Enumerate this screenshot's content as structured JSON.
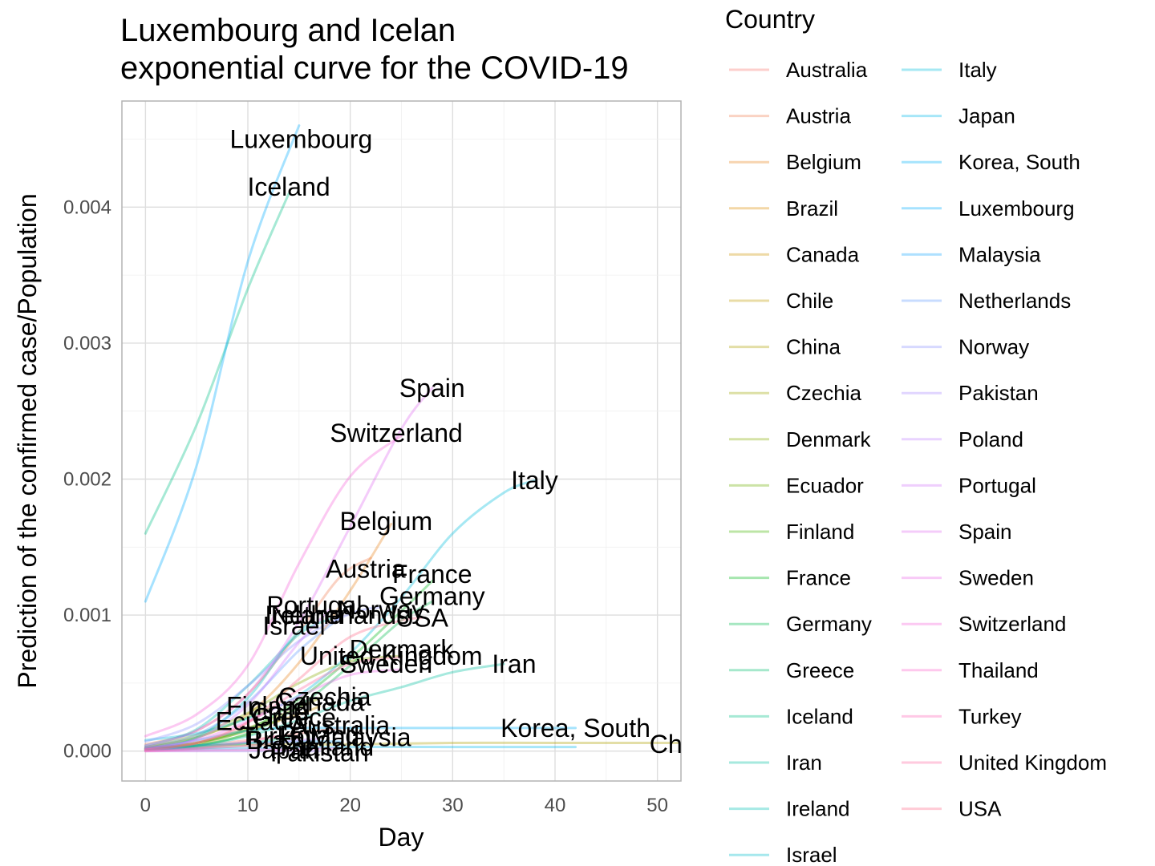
{
  "chart_data": {
    "type": "line",
    "title": "Luxembourg and Icelan\nexponential curve for the COVID-19",
    "xlabel": "Day",
    "ylabel": "Prediction of the confirmed case/Population",
    "xlim": [
      -2.3,
      52.3
    ],
    "ylim": [
      -0.00022,
      0.00478
    ],
    "x_ticks": [
      "0",
      "10",
      "20",
      "30",
      "40",
      "50"
    ],
    "x_tick_values": [
      0,
      10,
      20,
      30,
      40,
      50
    ],
    "y_ticks": [
      "0.000",
      "0.001",
      "0.002",
      "0.003",
      "0.004"
    ],
    "y_tick_values": [
      0,
      0.001,
      0.002,
      0.003,
      0.004
    ],
    "grid": true,
    "legend": {
      "title": "Country",
      "placement": "right",
      "columns": 2
    },
    "series": [
      {
        "name": "Australia",
        "color": "#F8766D",
        "points": [
          [
            0,
            2e-05
          ],
          [
            5,
            4e-05
          ],
          [
            10,
            8e-05
          ],
          [
            15,
            0.00013
          ],
          [
            19,
            0.00017
          ]
        ]
      },
      {
        "name": "Austria",
        "color": "#F07E52",
        "points": [
          [
            0,
            5e-05
          ],
          [
            5,
            0.00015
          ],
          [
            10,
            0.00042
          ],
          [
            15,
            0.00088
          ],
          [
            19,
            0.00128
          ],
          [
            22,
            0.00142
          ]
        ]
      },
      {
        "name": "Belgium",
        "color": "#E7851E",
        "points": [
          [
            0,
            3e-05
          ],
          [
            5,
            0.0001
          ],
          [
            10,
            0.00027
          ],
          [
            15,
            0.00065
          ],
          [
            20,
            0.00118
          ],
          [
            24,
            0.00167
          ]
        ]
      },
      {
        "name": "Brazil",
        "color": "#DC8D00",
        "points": [
          [
            0,
            1e-05
          ],
          [
            5,
            2e-05
          ],
          [
            10,
            4e-05
          ],
          [
            13,
            6e-05
          ]
        ]
      },
      {
        "name": "Canada",
        "color": "#CF9400",
        "points": [
          [
            0,
            2e-05
          ],
          [
            5,
            6e-05
          ],
          [
            10,
            0.00016
          ],
          [
            15,
            0.00027
          ],
          [
            17,
            0.00033
          ]
        ]
      },
      {
        "name": "Chile",
        "color": "#C09B00",
        "points": [
          [
            0,
            1e-05
          ],
          [
            5,
            5e-05
          ],
          [
            10,
            0.00015
          ],
          [
            13,
            0.00022
          ]
        ]
      },
      {
        "name": "China",
        "color": "#B0A100",
        "points": [
          [
            0,
            2e-05
          ],
          [
            10,
            5e-05
          ],
          [
            20,
            5e-05
          ],
          [
            30,
            6e-05
          ],
          [
            40,
            6e-05
          ],
          [
            55,
            6e-05
          ]
        ]
      },
      {
        "name": "Czechia",
        "color": "#9EA700",
        "points": [
          [
            0,
            1e-05
          ],
          [
            5,
            6e-05
          ],
          [
            10,
            0.00017
          ],
          [
            15,
            0.00032
          ],
          [
            17,
            0.00039
          ]
        ]
      },
      {
        "name": "Denmark",
        "color": "#88AC00",
        "points": [
          [
            0,
            3e-05
          ],
          [
            5,
            0.00012
          ],
          [
            10,
            0.00028
          ],
          [
            15,
            0.0005
          ],
          [
            20,
            0.00066
          ],
          [
            25,
            0.0007
          ]
        ]
      },
      {
        "name": "Ecuador",
        "color": "#6DB000",
        "points": [
          [
            0,
            1e-05
          ],
          [
            5,
            4e-05
          ],
          [
            10,
            0.00012
          ],
          [
            11,
            0.00015
          ]
        ]
      },
      {
        "name": "Finland",
        "color": "#43B500",
        "points": [
          [
            0,
            2e-05
          ],
          [
            5,
            0.0001
          ],
          [
            10,
            0.00025
          ],
          [
            12,
            0.00031
          ]
        ]
      },
      {
        "name": "France",
        "color": "#00B81B",
        "points": [
          [
            0,
            2e-05
          ],
          [
            5,
            6e-05
          ],
          [
            10,
            0.00016
          ],
          [
            15,
            0.00038
          ],
          [
            20,
            0.00068
          ],
          [
            25,
            0.00103
          ],
          [
            28,
            0.00125
          ]
        ]
      },
      {
        "name": "Germany",
        "color": "#00BB4E",
        "points": [
          [
            0,
            1e-05
          ],
          [
            5,
            4e-05
          ],
          [
            10,
            0.00013
          ],
          [
            15,
            0.00033
          ],
          [
            20,
            0.00063
          ],
          [
            25,
            0.00096
          ],
          [
            28,
            0.0011
          ]
        ]
      },
      {
        "name": "Greece",
        "color": "#00BD6D",
        "points": [
          [
            0,
            1e-05
          ],
          [
            5,
            3e-05
          ],
          [
            10,
            6e-05
          ],
          [
            14,
            0.0001
          ]
        ]
      },
      {
        "name": "Iceland",
        "color": "#00BF88",
        "points": [
          [
            0,
            0.0016
          ],
          [
            5,
            0.0024
          ],
          [
            10,
            0.0034
          ],
          [
            14,
            0.0041
          ]
        ]
      },
      {
        "name": "Iran",
        "color": "#00C0A0",
        "points": [
          [
            0,
            1e-05
          ],
          [
            5,
            4e-05
          ],
          [
            10,
            0.00011
          ],
          [
            15,
            0.00023
          ],
          [
            20,
            0.00037
          ],
          [
            25,
            0.00047
          ],
          [
            30,
            0.00058
          ],
          [
            35,
            0.00064
          ]
        ]
      },
      {
        "name": "Ireland",
        "color": "#00C0B5",
        "points": [
          [
            0,
            4e-05
          ],
          [
            5,
            0.00016
          ],
          [
            10,
            0.00048
          ],
          [
            15,
            0.00086
          ],
          [
            18,
            0.00097
          ]
        ]
      },
      {
        "name": "Israel",
        "color": "#00BECA",
        "points": [
          [
            0,
            2e-05
          ],
          [
            5,
            0.0001
          ],
          [
            10,
            0.00039
          ],
          [
            14,
            0.0008
          ],
          [
            16,
            0.00094
          ]
        ]
      },
      {
        "name": "Italy",
        "color": "#00BCDC",
        "points": [
          [
            0,
            8e-05
          ],
          [
            5,
            0.00013
          ],
          [
            10,
            0.00024
          ],
          [
            15,
            0.00041
          ],
          [
            20,
            0.00072
          ],
          [
            25,
            0.00113
          ],
          [
            30,
            0.0016
          ],
          [
            35,
            0.0019
          ],
          [
            38,
            0.00199
          ]
        ]
      },
      {
        "name": "Japan",
        "color": "#00B8EC",
        "points": [
          [
            0,
            1e-05
          ],
          [
            10,
            2e-05
          ],
          [
            20,
            3e-05
          ],
          [
            30,
            3e-05
          ],
          [
            42,
            3e-05
          ]
        ]
      },
      {
        "name": "Korea, South",
        "color": "#00B3F9",
        "points": [
          [
            0,
            1e-05
          ],
          [
            5,
            8e-05
          ],
          [
            10,
            0.00015
          ],
          [
            15,
            0.00017
          ],
          [
            25,
            0.00017
          ],
          [
            42,
            0.00017
          ]
        ]
      },
      {
        "name": "Luxembourg",
        "color": "#00ADFF",
        "points": [
          [
            0,
            0.0011
          ],
          [
            5,
            0.0021
          ],
          [
            10,
            0.0036
          ],
          [
            15,
            0.0046
          ]
        ]
      },
      {
        "name": "Malaysia",
        "color": "#18A5FF",
        "points": [
          [
            0,
            1e-05
          ],
          [
            5,
            4e-05
          ],
          [
            10,
            6e-05
          ],
          [
            15,
            7e-05
          ],
          [
            19,
            7e-05
          ]
        ]
      },
      {
        "name": "Netherlands",
        "color": "#619CFF",
        "points": [
          [
            0,
            3e-05
          ],
          [
            5,
            0.00012
          ],
          [
            10,
            0.00036
          ],
          [
            15,
            0.00074
          ],
          [
            19,
            0.00098
          ]
        ]
      },
      {
        "name": "Norway",
        "color": "#8B93FF",
        "points": [
          [
            0,
            7e-05
          ],
          [
            5,
            0.0002
          ],
          [
            10,
            0.00048
          ],
          [
            15,
            0.00081
          ],
          [
            20,
            0.00101
          ],
          [
            23,
            0.00106
          ]
        ]
      },
      {
        "name": "Pakistan",
        "color": "#A889FF",
        "points": [
          [
            0,
            0.0
          ],
          [
            10,
            0.0
          ],
          [
            17,
            0.0
          ]
        ]
      },
      {
        "name": "Poland",
        "color": "#BF80FF",
        "points": [
          [
            0,
            1e-05
          ],
          [
            5,
            2e-05
          ],
          [
            10,
            4e-05
          ],
          [
            15,
            8e-05
          ],
          [
            17,
            9e-05
          ]
        ]
      },
      {
        "name": "Portugal",
        "color": "#D176FA",
        "points": [
          [
            0,
            2e-05
          ],
          [
            5,
            9e-05
          ],
          [
            10,
            0.00034
          ],
          [
            15,
            0.0008
          ],
          [
            18,
            0.00104
          ]
        ]
      },
      {
        "name": "Spain",
        "color": "#E06DF2",
        "points": [
          [
            0,
            4e-05
          ],
          [
            5,
            0.00015
          ],
          [
            10,
            0.00042
          ],
          [
            15,
            0.00095
          ],
          [
            20,
            0.00165
          ],
          [
            25,
            0.00237
          ],
          [
            28,
            0.00267
          ]
        ]
      },
      {
        "name": "Sweden",
        "color": "#EC66E8",
        "points": [
          [
            0,
            2e-05
          ],
          [
            5,
            8e-05
          ],
          [
            10,
            0.00022
          ],
          [
            15,
            0.0004
          ],
          [
            20,
            0.00056
          ],
          [
            25,
            0.0006
          ]
        ]
      },
      {
        "name": "Switzerland",
        "color": "#F564DA",
        "points": [
          [
            0,
            0.00011
          ],
          [
            5,
            0.00027
          ],
          [
            10,
            0.00063
          ],
          [
            15,
            0.00138
          ],
          [
            20,
            0.00202
          ],
          [
            25,
            0.00232
          ]
        ]
      },
      {
        "name": "Thailand",
        "color": "#FC62CA",
        "points": [
          [
            0,
            0.0
          ],
          [
            10,
            1e-05
          ],
          [
            19,
            2e-05
          ]
        ]
      },
      {
        "name": "Turkey",
        "color": "#FF63B6",
        "points": [
          [
            0,
            0.0
          ],
          [
            5,
            2e-05
          ],
          [
            10,
            7e-05
          ],
          [
            13,
            0.00011
          ]
        ]
      },
      {
        "name": "United Kingdom",
        "color": "#FF66A1",
        "points": [
          [
            0,
            1e-05
          ],
          [
            5,
            6e-05
          ],
          [
            10,
            0.00021
          ],
          [
            15,
            0.00045
          ],
          [
            20,
            0.00064
          ],
          [
            25,
            0.00069
          ]
        ]
      },
      {
        "name": "USA",
        "color": "#FF6A8A",
        "points": [
          [
            0,
            1e-05
          ],
          [
            5,
            6e-05
          ],
          [
            10,
            0.00021
          ],
          [
            15,
            0.00053
          ],
          [
            20,
            0.00084
          ],
          [
            25,
            0.00096
          ],
          [
            27,
            0.00098
          ]
        ]
      }
    ],
    "end_labels": [
      {
        "text": "Luxembourg",
        "x": 15.2,
        "y": 0.0045
      },
      {
        "text": "Iceland",
        "x": 14.0,
        "y": 0.00415
      },
      {
        "text": "Spain",
        "x": 28.0,
        "y": 0.00267
      },
      {
        "text": "Switzerland",
        "x": 24.5,
        "y": 0.00234
      },
      {
        "text": "Italy",
        "x": 38.0,
        "y": 0.00199
      },
      {
        "text": "Belgium",
        "x": 23.5,
        "y": 0.00169
      },
      {
        "text": "Austria",
        "x": 21.5,
        "y": 0.00134
      },
      {
        "text": "France",
        "x": 28.0,
        "y": 0.0013
      },
      {
        "text": "Germany",
        "x": 28.0,
        "y": 0.00114
      },
      {
        "text": "Portugal",
        "x": 16.5,
        "y": 0.00107
      },
      {
        "text": "Norway",
        "x": 23.0,
        "y": 0.00104
      },
      {
        "text": "Ireland",
        "x": 15.5,
        "y": 0.001
      },
      {
        "text": "Netherlands",
        "x": 19.0,
        "y": 0.001
      },
      {
        "text": "USA",
        "x": 27.0,
        "y": 0.00098
      },
      {
        "text": "Israel",
        "x": 14.5,
        "y": 0.00092
      },
      {
        "text": "Denmark",
        "x": 25.0,
        "y": 0.00075
      },
      {
        "text": "United Kingdom",
        "x": 24.0,
        "y": 0.0007
      },
      {
        "text": "Sweden",
        "x": 23.5,
        "y": 0.00064
      },
      {
        "text": "Iran",
        "x": 36.0,
        "y": 0.00064
      },
      {
        "text": "Czechia",
        "x": 17.5,
        "y": 0.0004
      },
      {
        "text": "Canada",
        "x": 17.0,
        "y": 0.00036
      },
      {
        "text": "Finland",
        "x": 12.0,
        "y": 0.00033
      },
      {
        "text": "Chile",
        "x": 13.0,
        "y": 0.00029
      },
      {
        "text": "Greece",
        "x": 14.5,
        "y": 0.00025
      },
      {
        "text": "Ecuador",
        "x": 11.5,
        "y": 0.00022
      },
      {
        "text": "Australia",
        "x": 19.0,
        "y": 0.00019
      },
      {
        "text": "Korea, South",
        "x": 42.0,
        "y": 0.00017
      },
      {
        "text": "Poland",
        "x": 17.0,
        "y": 0.00012
      },
      {
        "text": "Turkey",
        "x": 13.0,
        "y": 0.00011
      },
      {
        "text": "Malaysia",
        "x": 21.0,
        "y": 0.0001
      },
      {
        "text": "Brazil",
        "x": 13.0,
        "y": 8e-05
      },
      {
        "text": "China",
        "x": 52.5,
        "y": 5e-05
      },
      {
        "text": "Thailand",
        "x": 17.5,
        "y": 3e-05
      },
      {
        "text": "Japan",
        "x": 13.5,
        "y": 1e-05
      },
      {
        "text": "Pakistan",
        "x": 17.0,
        "y": -1e-05
      }
    ]
  }
}
